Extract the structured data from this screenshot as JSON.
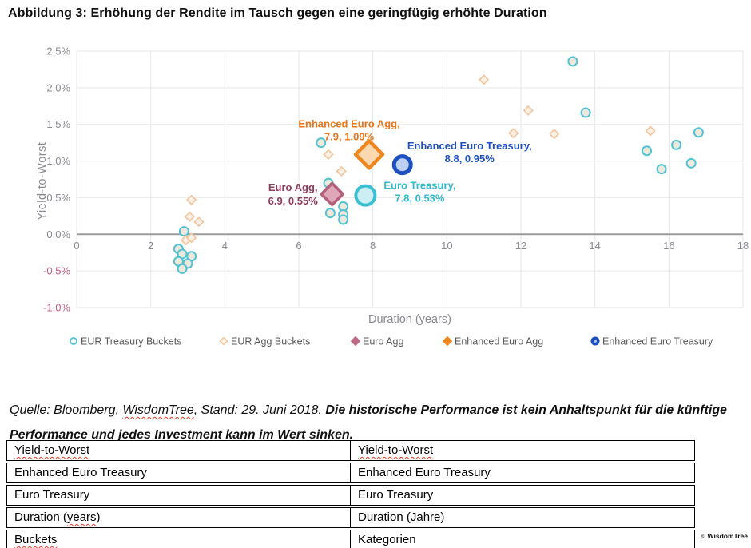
{
  "page": {
    "title": "Abbildung 3: Erhöhung der Rendite im Tausch gegen eine geringfügig erhöhte Duration",
    "watermark": "© WisdomTree"
  },
  "source_note": {
    "prefix": "Quelle: Bloomberg, ",
    "spellchecked_word": "WisdomTree",
    "middle": ", Stand: 29. Juni 2018. ",
    "warning": "Die historische Performance ist kein Anhaltspunkt für die künftige Performance und jedes Investment kann im Wert sinken."
  },
  "glossary_table": {
    "rows": [
      {
        "left": {
          "pre": "",
          "wavy": "Yield-to-Worst",
          "post": ""
        },
        "right": {
          "pre": "",
          "wavy": "Yield-to-Worst",
          "post": ""
        }
      },
      {
        "left": {
          "pre": "Enhanced Euro Treasury",
          "wavy": "",
          "post": ""
        },
        "right": {
          "pre": "Enhanced Euro Treasury",
          "wavy": "",
          "post": ""
        }
      },
      {
        "left": {
          "pre": "Euro Treasury",
          "wavy": "",
          "post": ""
        },
        "right": {
          "pre": "Euro Treasury",
          "wavy": "",
          "post": ""
        }
      },
      {
        "left": {
          "pre": "Duration (",
          "wavy": "years",
          "post": ")"
        },
        "right": {
          "pre": "Duration (Jahre)",
          "wavy": "",
          "post": ""
        }
      },
      {
        "left": {
          "pre": "",
          "wavy": "Buckets",
          "post": ""
        },
        "right": {
          "pre": "Kategorien",
          "wavy": "",
          "post": ""
        }
      }
    ]
  },
  "chart_data": {
    "type": "scatter",
    "xlabel": "Duration (years)",
    "ylabel": "Yield-to-Worst",
    "xlim": [
      0,
      18
    ],
    "ylim": [
      -1.0,
      2.5
    ],
    "x_ticks": [
      0,
      2,
      4,
      6,
      8,
      10,
      12,
      14,
      16,
      18
    ],
    "y_ticks": [
      2.5,
      2.0,
      1.5,
      1.0,
      0.5,
      0.0,
      -0.5,
      -1.0
    ],
    "grid": true,
    "legend_position": "bottom",
    "colors": {
      "axis_text": "#8a8a93",
      "negative_tick": "#c45c83",
      "grid": "#e7e7e7",
      "zero_line": "#9b9b9b",
      "plot_border": "#e3e3e3",
      "legend_text": "#595959"
    },
    "series": [
      {
        "name": "EUR Treasury Buckets",
        "marker": "circle",
        "r": 5.5,
        "stroke": "#4fc3d4",
        "stroke_width": 2,
        "fill": "#ede8dc",
        "points": [
          [
            2.9,
            0.04
          ],
          [
            2.75,
            -0.2
          ],
          [
            2.85,
            -0.27
          ],
          [
            3.1,
            -0.3
          ],
          [
            2.75,
            -0.37
          ],
          [
            3.0,
            -0.4
          ],
          [
            2.85,
            -0.47
          ],
          [
            6.6,
            1.25
          ],
          [
            6.8,
            0.7
          ],
          [
            6.85,
            0.29
          ],
          [
            7.2,
            0.38
          ],
          [
            7.2,
            0.27
          ],
          [
            7.2,
            0.2
          ],
          [
            13.4,
            2.36
          ],
          [
            13.75,
            1.66
          ],
          [
            16.8,
            1.39
          ],
          [
            16.2,
            1.22
          ],
          [
            15.4,
            1.14
          ],
          [
            16.6,
            0.97
          ],
          [
            15.8,
            0.89
          ]
        ]
      },
      {
        "name": "EUR Agg Buckets",
        "marker": "diamond",
        "r": 5.5,
        "stroke": "#f2c49e",
        "stroke_width": 1.6,
        "fill": "#fbf0e3",
        "points": [
          [
            3.1,
            0.47
          ],
          [
            3.05,
            0.24
          ],
          [
            3.3,
            0.17
          ],
          [
            2.95,
            -0.08
          ],
          [
            3.1,
            -0.05
          ],
          [
            6.8,
            1.09
          ],
          [
            7.15,
            0.86
          ],
          [
            11.0,
            2.11
          ],
          [
            12.2,
            1.69
          ],
          [
            11.8,
            1.38
          ],
          [
            12.9,
            1.37
          ],
          [
            15.5,
            1.41
          ]
        ]
      },
      {
        "name": "Euro Agg",
        "marker": "diamond",
        "r": 13.5,
        "stroke": "#b3607c",
        "stroke_width": 3.5,
        "fill": "#dfa8b8",
        "points": [
          [
            6.9,
            0.55
          ]
        ]
      },
      {
        "name": "Enhanced Euro Agg",
        "marker": "diamond",
        "r": 17,
        "stroke": "#f0861e",
        "stroke_width": 4.5,
        "fill": "#fad9b0",
        "points": [
          [
            7.9,
            1.09
          ]
        ]
      },
      {
        "name": "Euro Treasury",
        "marker": "circle",
        "r": 12,
        "stroke": "#3bc0d2",
        "stroke_width": 4,
        "fill": "#cdeff3",
        "points": [
          [
            7.8,
            0.53
          ]
        ]
      },
      {
        "name": "Enhanced Euro Treasury",
        "marker": "circle",
        "r": 10.5,
        "stroke": "#1c4fc0",
        "stroke_width": 5,
        "fill": "#bdd0f2",
        "points": [
          [
            8.8,
            0.95
          ]
        ]
      }
    ],
    "annotations": [
      {
        "series": "Euro Agg",
        "line1": "Euro Agg,",
        "line2": "6.9, 0.55%",
        "x": 6.9,
        "y": 0.55,
        "color": "#8e3a5c",
        "dx": -49,
        "dy1": -4,
        "dy2": 13
      },
      {
        "series": "Enhanced Euro Agg",
        "line1": "Enhanced Euro Agg,",
        "line2": "7.9, 1.09%",
        "x": 7.9,
        "y": 1.09,
        "color": "#e8761b",
        "dx": -25,
        "dy1": -34,
        "dy2": -18
      },
      {
        "series": "Euro Treasury",
        "line1": "Euro Treasury,",
        "line2": "7.8, 0.53%",
        "x": 7.8,
        "y": 0.53,
        "color": "#2fb9cd",
        "dx": 68,
        "dy1": -8,
        "dy2": 8
      },
      {
        "series": "Enhanced Euro Treasury",
        "line1": "Enhanced Euro Treasury,",
        "line2": "8.8, 0.95%",
        "x": 8.8,
        "y": 0.95,
        "color": "#1c4fc0",
        "dx": 84,
        "dy1": -19,
        "dy2": -3
      }
    ],
    "legend": [
      {
        "label": "EUR Treasury Buckets",
        "marker": "circle-outline",
        "color": "#4fc3d4"
      },
      {
        "label": "EUR Agg Buckets",
        "marker": "diamond-outline",
        "color": "#f2c49e"
      },
      {
        "label": "Euro Agg",
        "marker": "diamond-solid",
        "color": "#be6883"
      },
      {
        "label": "Enhanced Euro Agg",
        "marker": "diamond-solid",
        "color": "#f0861e"
      },
      {
        "label": "Enhanced Euro Treasury",
        "marker": "circle-solid",
        "color": "#1c4fc0"
      }
    ]
  }
}
